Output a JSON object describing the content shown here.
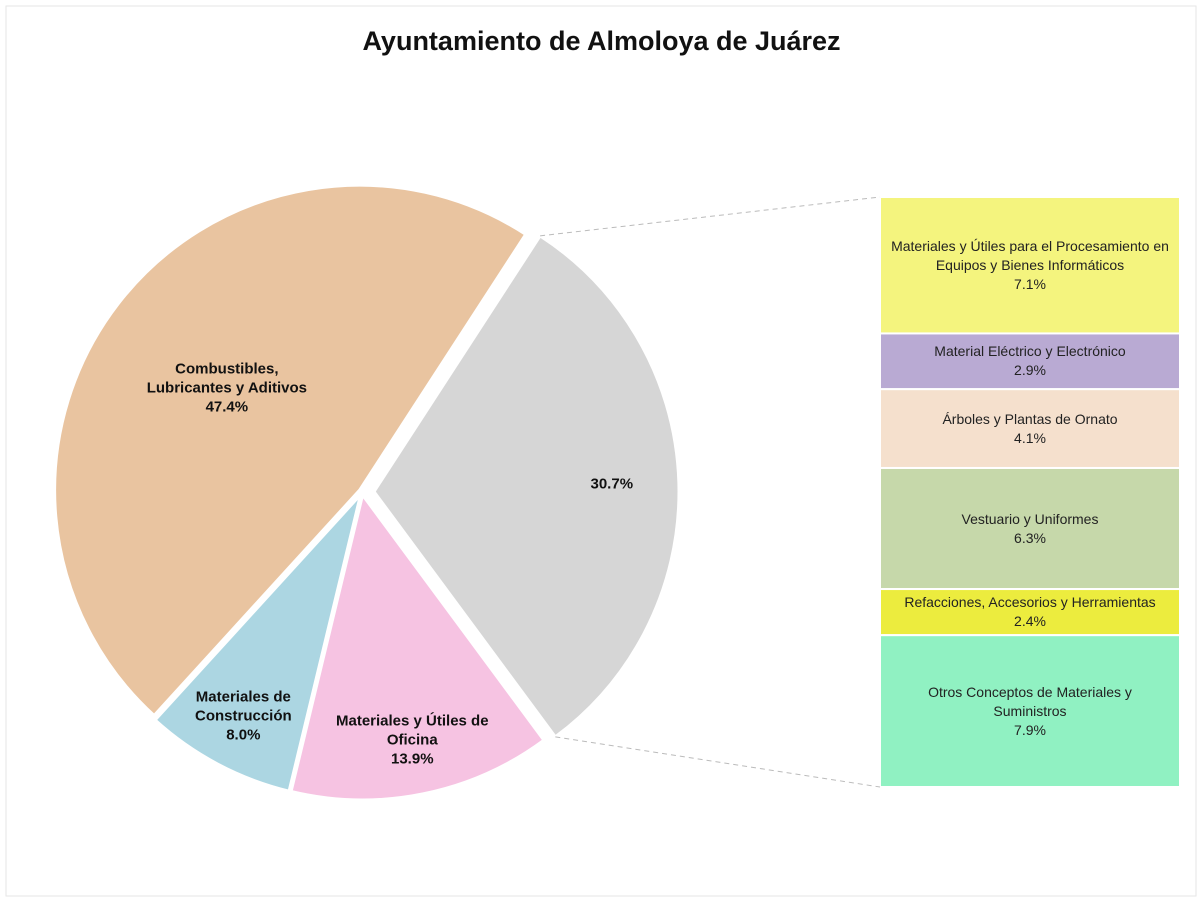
{
  "chart_data": {
    "type": "pie",
    "title": "Ayuntamiento de Almoloya de Juárez",
    "categories": [
      null,
      "Materiales y Útiles de Oficina",
      "Materiales de Construcción",
      "Combustibles, Lubricantes y Aditivos"
    ],
    "values": [
      30.7,
      13.9,
      8.0,
      47.4
    ],
    "value_labels": [
      "30.7%",
      "13.9%",
      "8.0%",
      "47.4%"
    ],
    "colors": [
      "#d6d6d6",
      "#f6c3e2",
      "#acd6e2",
      "#e9c4a0"
    ],
    "breakdown": {
      "categories": [
        "Materiales y Útiles para el Procesamiento en Equipos y Bienes Informáticos",
        "Material Eléctrico y Electrónico",
        "Árboles y Plantas de Ornato",
        "Vestuario y Uniformes",
        "Refacciones, Accesorios y Herramientas",
        "Otros Conceptos de Materiales y Suministros"
      ],
      "values": [
        7.1,
        2.9,
        4.1,
        6.3,
        2.4,
        7.9
      ],
      "value_labels": [
        "7.1%",
        "2.9%",
        "4.1%",
        "6.3%",
        "2.4%",
        "7.9%"
      ],
      "colors": [
        "#f4f47e",
        "#b9aad3",
        "#f5e0cd",
        "#c6d8aa",
        "#ecec3e",
        "#90f1c2"
      ]
    }
  }
}
